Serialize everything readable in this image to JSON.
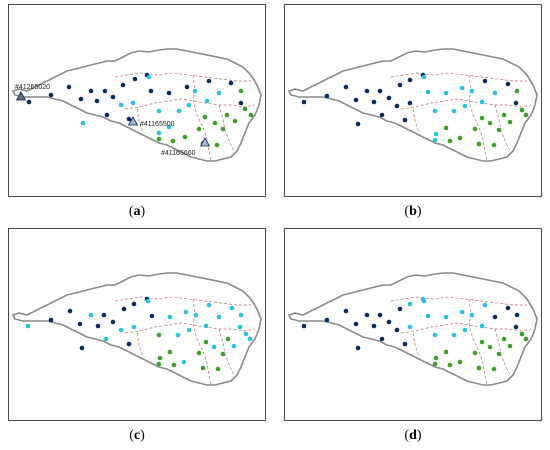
{
  "colors": {
    "cluster_1": "#0b2a5e",
    "cluster_2": "#29c2e0",
    "cluster_3": "#3f9e26",
    "boundary": "#8a8a8a",
    "subbasin": "#b07070"
  },
  "panels": [
    {
      "id": "a",
      "label": "a",
      "gauges": [
        "#41265020",
        "#41165500",
        "#41165660"
      ]
    },
    {
      "id": "b",
      "label": "b",
      "gauges": []
    },
    {
      "id": "c",
      "label": "c",
      "gauges": []
    },
    {
      "id": "d",
      "label": "d",
      "gauges": []
    }
  ]
}
